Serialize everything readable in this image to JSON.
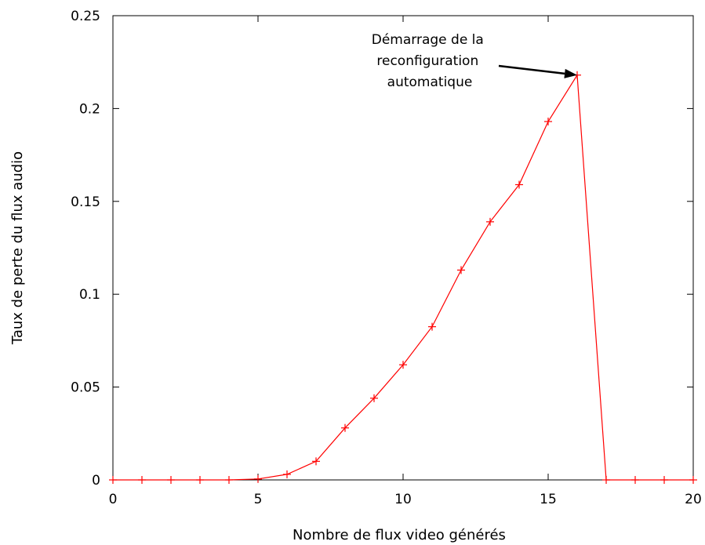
{
  "chart_data": {
    "type": "line",
    "xlabel": "Nombre de flux video générés",
    "ylabel": "Taux de perte du flux audio",
    "xlim": [
      0,
      20
    ],
    "ylim": [
      0,
      0.25
    ],
    "xticks": [
      0,
      5,
      10,
      15,
      20
    ],
    "yticks": [
      0,
      0.05,
      0.1,
      0.15,
      0.2,
      0.25
    ],
    "xtick_labels": [
      "0",
      "5",
      "10",
      "15",
      "20"
    ],
    "ytick_labels": [
      "0",
      "0.05",
      "0.1",
      "0.15",
      "0.2",
      "0.25"
    ],
    "grid": false,
    "series": [
      {
        "color": "#ff0000",
        "marker": "plus",
        "x": [
          0,
          1,
          2,
          3,
          4,
          5,
          6,
          7,
          8,
          9,
          10,
          11,
          12,
          13,
          14,
          15,
          16,
          17,
          18,
          19,
          20
        ],
        "y": [
          0,
          0,
          0,
          0,
          0,
          0.0005,
          0.003,
          0.01,
          0.028,
          0.044,
          0.062,
          0.0825,
          0.113,
          0.139,
          0.159,
          0.193,
          0.218,
          0,
          0,
          0,
          0
        ]
      }
    ],
    "annotation": {
      "lines": [
        "Démarrage de la",
        "reconfiguration",
        "automatique"
      ],
      "x": 16,
      "y": 0.218
    }
  }
}
